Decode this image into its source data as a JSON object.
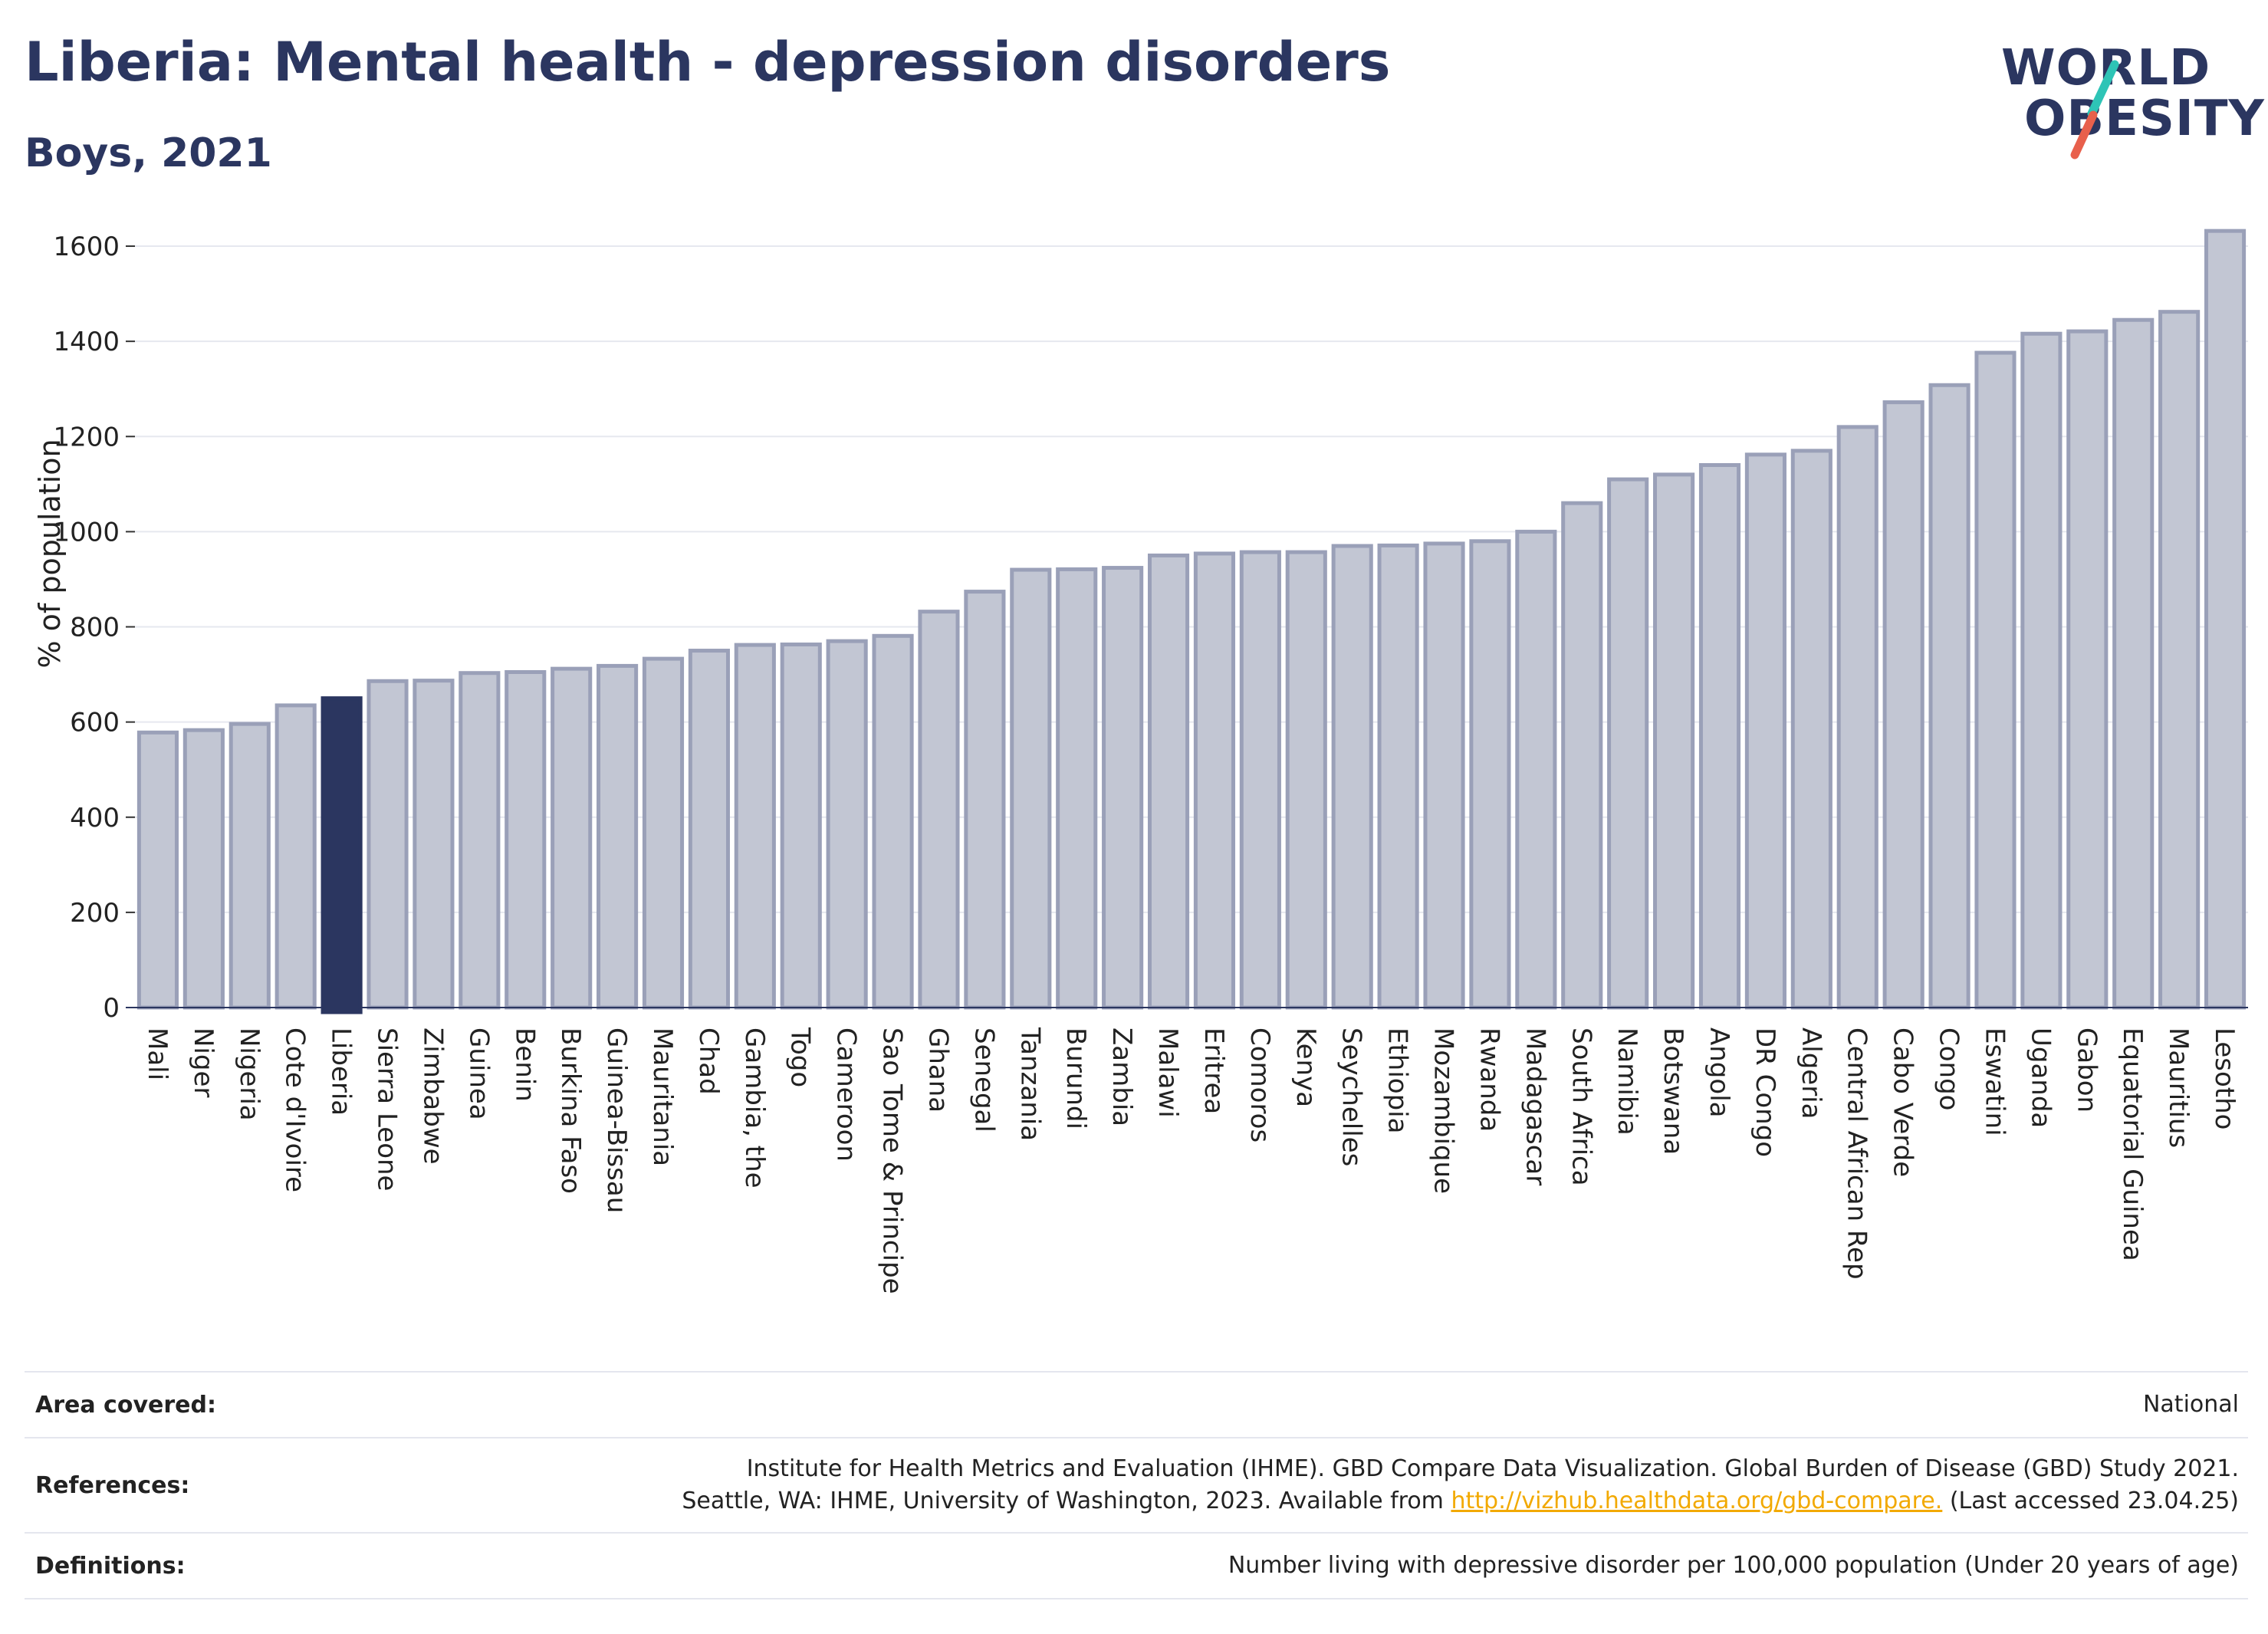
{
  "header": {
    "title": "Liberia: Mental health - depression disorders",
    "subtitle": "Boys, 2021"
  },
  "logo": {
    "line1": "WORLD",
    "line2": "OBESITY",
    "accent_teal": "#2ec4b6",
    "accent_coral": "#e8604c"
  },
  "colors": {
    "bar_fill": "#c2c6d3",
    "bar_stroke": "#9aa0b8",
    "highlight": "#2b3660",
    "grid": "#e6e8ef"
  },
  "chart_data": {
    "type": "bar",
    "ylabel": "% of population",
    "ylim": [
      0,
      1650
    ],
    "yticks": [
      0,
      200,
      400,
      600,
      800,
      1000,
      1200,
      1400,
      1600
    ],
    "grid": true,
    "highlight": "Liberia",
    "categories": [
      "Mali",
      "Niger",
      "Nigeria",
      "Cote d'Ivoire",
      "Liberia",
      "Sierra Leone",
      "Zimbabwe",
      "Guinea",
      "Benin",
      "Burkina Faso",
      "Guinea-Bissau",
      "Mauritania",
      "Chad",
      "Gambia, the",
      "Togo",
      "Cameroon",
      "Sao Tome & Principe",
      "Ghana",
      "Senegal",
      "Tanzania",
      "Burundi",
      "Zambia",
      "Malawi",
      "Eritrea",
      "Comoros",
      "Kenya",
      "Seychelles",
      "Ethiopia",
      "Mozambique",
      "Rwanda",
      "Madagascar",
      "South Africa",
      "Namibia",
      "Botswana",
      "Angola",
      "DR Congo",
      "Algeria",
      "Central African Rep",
      "Cabo Verde",
      "Congo",
      "Eswatini",
      "Uganda",
      "Gabon",
      "Equatorial Guinea",
      "Mauritius",
      "Lesotho"
    ],
    "values": [
      578,
      583,
      596,
      635,
      650,
      686,
      687,
      703,
      705,
      712,
      718,
      733,
      750,
      762,
      763,
      770,
      781,
      832,
      874,
      920,
      921,
      924,
      950,
      954,
      957,
      957,
      970,
      971,
      975,
      980,
      1000,
      1060,
      1110,
      1120,
      1140,
      1162,
      1170,
      1220,
      1272,
      1308,
      1376,
      1416,
      1421,
      1445,
      1462,
      1632
    ]
  },
  "footer": {
    "area_label": "Area covered:",
    "area_value": "National",
    "ref_label": "References:",
    "ref_line1": "Institute for Health Metrics and Evaluation (IHME). GBD Compare Data Visualization. Global Burden of Disease (GBD) Study 2021.",
    "ref_line2_pre": "Seattle, WA: IHME, University of Washington, 2023. Available from ",
    "ref_link": "http://vizhub.healthdata.org/gbd-compare.",
    "ref_line2_post": " (Last accessed 23.04.25)",
    "def_label": "Definitions:",
    "def_value": "Number living with depressive disorder per 100,000 population (Under 20 years of age)"
  }
}
